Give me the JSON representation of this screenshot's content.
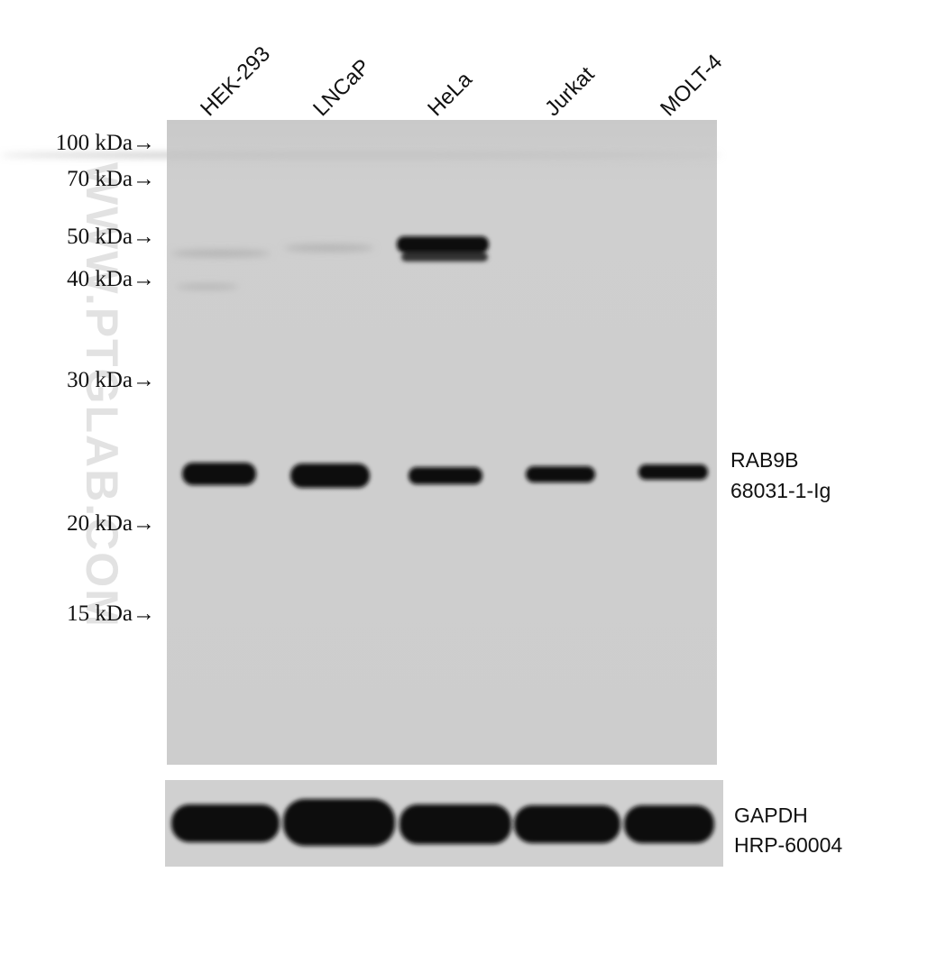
{
  "lanes": [
    "HEK-293",
    "LNCaP",
    "HeLa",
    "Jurkat",
    "MOLT-4"
  ],
  "markers": [
    "100 kDa→",
    "70 kDa→",
    "50 kDa→",
    "40 kDa→",
    "30 kDa→",
    "20 kDa→",
    "15 kDa→"
  ],
  "target": {
    "name": "RAB9B",
    "catalog": "68031-1-Ig"
  },
  "loading_control": {
    "name": "GAPDH",
    "catalog": "HRP-60004"
  },
  "watermark": "WWW.PTGLAB.COM"
}
